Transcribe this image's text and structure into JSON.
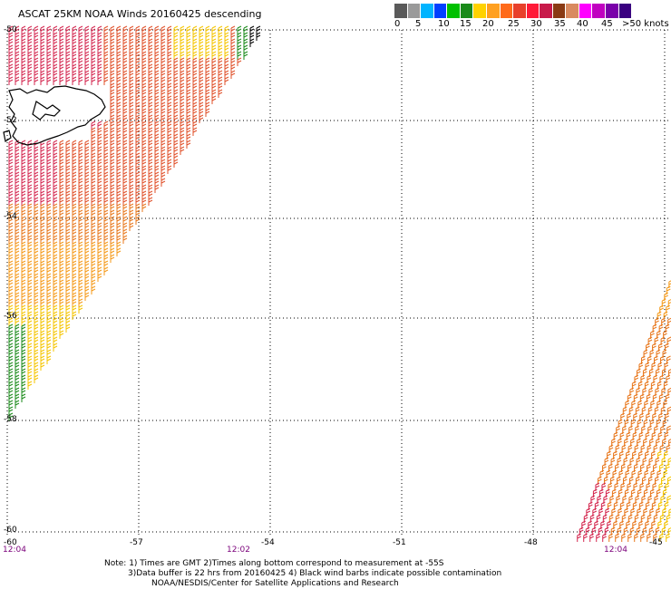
{
  "header": {
    "title": "ASCAT 25KM NOAA Winds 20160425 descending"
  },
  "legend": {
    "colors": [
      "#5a5a5a",
      "#9a9a9a",
      "#00b4ff",
      "#0040ff",
      "#00c000",
      "#1a8a1a",
      "#ffd200",
      "#ffa020",
      "#ff6a1a",
      "#e8402a",
      "#ff1a38",
      "#c81a4a",
      "#8a3a14",
      "#d98a60",
      "#ff00ff",
      "#c000c0",
      "#7a00aa",
      "#3a0080"
    ],
    "labels": [
      "0",
      "5",
      "10",
      "15",
      "20",
      "25",
      "30",
      "35",
      "40",
      "45",
      ">50 knots"
    ]
  },
  "axes": {
    "lat_labels": [
      "-50",
      "-52",
      "-54",
      "-56",
      "-58",
      "-60"
    ],
    "lon_labels": [
      "-60",
      "-57",
      "-54",
      "-51",
      "-48",
      "-45"
    ]
  },
  "times": [
    "12:04",
    "12:02",
    "12:04"
  ],
  "note": {
    "line1": "Note: 1) Times are GMT 2)Times along bottom correspond to measurement at -55S",
    "line2": "3)Data buffer is 22 hrs from 20160425 4) Black wind barbs indicate possible contamination",
    "line3": "NOAA/NESDIS/Center for Satellite Applications and Research"
  },
  "barb_colors": {
    "yellow": "#f5c400",
    "orange_light": "#f59a1a",
    "orange": "#e8781e",
    "red_orange": "#e0502a",
    "crimson": "#d42850",
    "green": "#1a8a1a",
    "black": "#000000",
    "blue": "#2a2aff"
  }
}
